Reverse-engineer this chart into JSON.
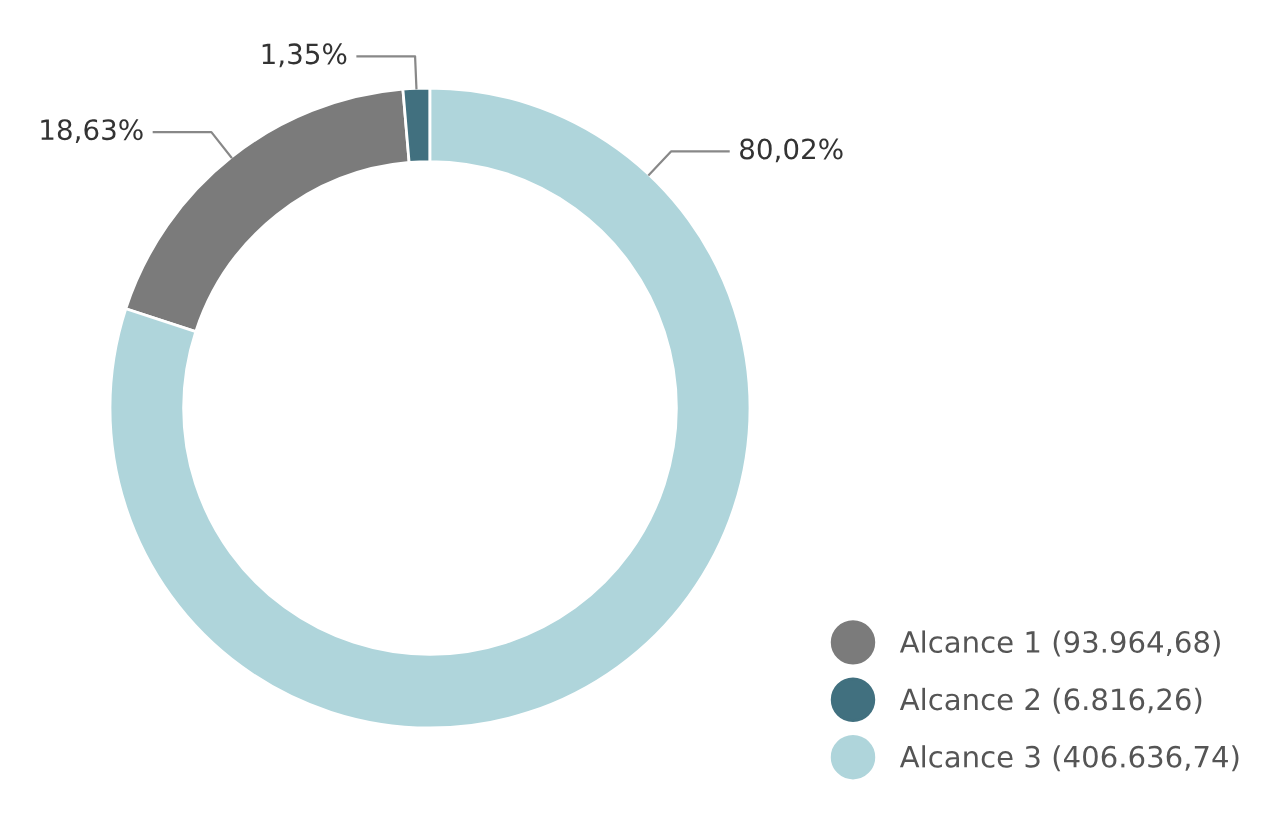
{
  "chart_data": {
    "type": "donut",
    "categories": [
      "Alcance 1 (93.964,68)",
      "Alcance 2 (6.816,26)",
      "Alcance 3 (406.636,74)"
    ],
    "values": [
      18.63,
      1.35,
      80.02
    ],
    "colors": [
      "#7b7b7b",
      "#41707f",
      "#afd5db"
    ],
    "value_labels": [
      "18,63%",
      "1,35%",
      "80,02%"
    ],
    "legend": "bottom right"
  }
}
